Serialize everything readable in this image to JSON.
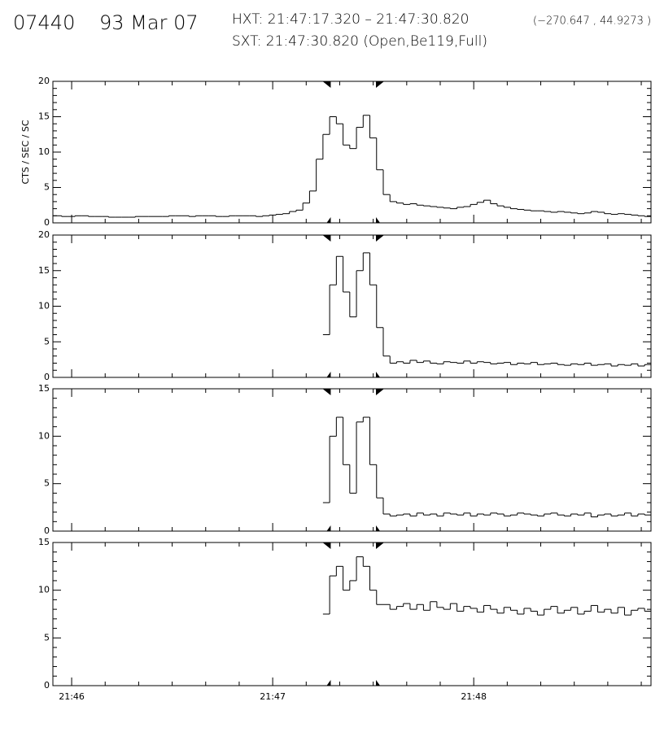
{
  "header": {
    "id": "07440",
    "date": "93 Mar 07",
    "hxt": "HXT: 21:47:17.320 – 21:47:30.820",
    "coords": "(−270.647 , 44.9273 )",
    "sxt": "SXT: 21:47:30.820 (Open,Be119,Full)"
  },
  "hxt_interval": [
    77.32,
    90.82
  ],
  "chart_data": [
    {
      "type": "step",
      "ylabel": "CTS / SEC / SC",
      "color": "#000000",
      "ylim": [
        0,
        20
      ],
      "yticks": [
        0,
        5,
        10,
        15,
        20
      ],
      "xlim": [
        -5.6,
        172.9
      ],
      "x": [
        -6,
        -4,
        -2,
        0,
        2,
        4,
        6,
        8,
        10,
        12,
        14,
        16,
        18,
        20,
        22,
        24,
        26,
        28,
        30,
        32,
        34,
        36,
        38,
        40,
        42,
        44,
        46,
        48,
        50,
        52,
        54,
        56,
        58,
        60,
        62,
        64,
        66,
        68,
        70,
        72,
        74,
        76,
        78,
        80,
        82,
        84,
        86,
        88,
        90,
        92,
        94,
        96,
        98,
        100,
        102,
        104,
        106,
        108,
        110,
        112,
        114,
        116,
        118,
        120,
        122,
        124,
        126,
        128,
        130,
        132,
        134,
        136,
        138,
        140,
        142,
        144,
        146,
        148,
        150,
        152,
        154,
        156,
        158,
        160,
        162,
        164,
        166,
        168,
        170,
        172
      ],
      "values": [
        1.0,
        1.0,
        0.9,
        0.9,
        1.0,
        1.0,
        0.9,
        0.9,
        0.9,
        0.8,
        0.8,
        0.8,
        0.8,
        0.9,
        0.9,
        0.9,
        0.9,
        0.9,
        1.0,
        1.0,
        1.0,
        0.9,
        1.0,
        1.0,
        1.0,
        0.9,
        0.9,
        1.0,
        1.0,
        1.0,
        1.0,
        0.9,
        1.0,
        1.1,
        1.2,
        1.3,
        1.6,
        1.8,
        2.8,
        4.5,
        9.0,
        12.5,
        15.0,
        14.0,
        11.0,
        10.5,
        13.5,
        15.2,
        12.0,
        7.5,
        4.0,
        3.0,
        2.8,
        2.6,
        2.7,
        2.5,
        2.4,
        2.3,
        2.2,
        2.1,
        2.0,
        2.2,
        2.3,
        2.6,
        2.9,
        3.2,
        2.7,
        2.4,
        2.2,
        2.0,
        1.9,
        1.8,
        1.7,
        1.7,
        1.6,
        1.5,
        1.6,
        1.5,
        1.4,
        1.3,
        1.4,
        1.6,
        1.5,
        1.3,
        1.2,
        1.3,
        1.2,
        1.1,
        1.0,
        0.9
      ]
    },
    {
      "type": "step",
      "color": "#000000",
      "ylim": [
        0,
        20
      ],
      "yticks": [
        0,
        5,
        10,
        15,
        20
      ],
      "xlim": [
        -5.6,
        172.9
      ],
      "x": [
        -6,
        -4,
        -2,
        0,
        2,
        4,
        6,
        8,
        10,
        12,
        14,
        16,
        18,
        20,
        22,
        24,
        26,
        28,
        30,
        32,
        34,
        36,
        38,
        40,
        42,
        44,
        46,
        48,
        50,
        52,
        54,
        56,
        58,
        60,
        62,
        64,
        66,
        68,
        70,
        72,
        74,
        76,
        78,
        80,
        82,
        84,
        86,
        88,
        90,
        92,
        94,
        96,
        98,
        100,
        102,
        104,
        106,
        108,
        110,
        112,
        114,
        116,
        118,
        120,
        122,
        124,
        126,
        128,
        130,
        132,
        134,
        136,
        138,
        140,
        142,
        144,
        146,
        148,
        150,
        152,
        154,
        156,
        158,
        160,
        162,
        164,
        166,
        168,
        170,
        172
      ],
      "values": [
        null,
        null,
        null,
        null,
        null,
        null,
        null,
        null,
        null,
        null,
        null,
        null,
        null,
        null,
        null,
        null,
        null,
        null,
        null,
        null,
        null,
        null,
        null,
        null,
        null,
        null,
        null,
        null,
        null,
        null,
        null,
        null,
        null,
        null,
        null,
        null,
        null,
        null,
        null,
        null,
        null,
        6.0,
        13.0,
        17.0,
        12.0,
        8.5,
        15.0,
        17.5,
        13.0,
        7.0,
        3.0,
        2.0,
        2.2,
        2.0,
        2.4,
        2.1,
        2.3,
        2.0,
        1.9,
        2.2,
        2.1,
        2.0,
        2.3,
        2.0,
        2.2,
        2.1,
        1.9,
        2.0,
        2.1,
        1.8,
        2.0,
        1.9,
        2.1,
        1.8,
        1.9,
        2.0,
        1.8,
        1.7,
        1.9,
        1.8,
        2.0,
        1.7,
        1.8,
        1.9,
        1.6,
        1.8,
        1.7,
        1.9,
        1.6,
        1.8
      ]
    },
    {
      "type": "step",
      "color": "#000000",
      "ylim": [
        0,
        15
      ],
      "yticks": [
        0,
        5,
        10,
        15
      ],
      "xlim": [
        -5.6,
        172.9
      ],
      "x": [
        -6,
        -4,
        -2,
        0,
        2,
        4,
        6,
        8,
        10,
        12,
        14,
        16,
        18,
        20,
        22,
        24,
        26,
        28,
        30,
        32,
        34,
        36,
        38,
        40,
        42,
        44,
        46,
        48,
        50,
        52,
        54,
        56,
        58,
        60,
        62,
        64,
        66,
        68,
        70,
        72,
        74,
        76,
        78,
        80,
        82,
        84,
        86,
        88,
        90,
        92,
        94,
        96,
        98,
        100,
        102,
        104,
        106,
        108,
        110,
        112,
        114,
        116,
        118,
        120,
        122,
        124,
        126,
        128,
        130,
        132,
        134,
        136,
        138,
        140,
        142,
        144,
        146,
        148,
        150,
        152,
        154,
        156,
        158,
        160,
        162,
        164,
        166,
        168,
        170,
        172
      ],
      "values": [
        null,
        null,
        null,
        null,
        null,
        null,
        null,
        null,
        null,
        null,
        null,
        null,
        null,
        null,
        null,
        null,
        null,
        null,
        null,
        null,
        null,
        null,
        null,
        null,
        null,
        null,
        null,
        null,
        null,
        null,
        null,
        null,
        null,
        null,
        null,
        null,
        null,
        null,
        null,
        null,
        null,
        3.0,
        10.0,
        12.0,
        7.0,
        4.0,
        11.5,
        12.0,
        7.0,
        3.5,
        1.8,
        1.6,
        1.7,
        1.8,
        1.6,
        1.9,
        1.7,
        1.8,
        1.6,
        1.9,
        1.8,
        1.7,
        1.9,
        1.6,
        1.8,
        1.7,
        1.9,
        1.8,
        1.6,
        1.7,
        1.9,
        1.8,
        1.7,
        1.6,
        1.8,
        1.9,
        1.7,
        1.6,
        1.8,
        1.7,
        1.9,
        1.5,
        1.7,
        1.8,
        1.6,
        1.7,
        1.9,
        1.6,
        1.8,
        1.7
      ]
    },
    {
      "type": "step",
      "color": "#000000",
      "ylim": [
        0,
        15
      ],
      "yticks": [
        0,
        5,
        10,
        15
      ],
      "xlim": [
        -5.6,
        172.9
      ],
      "xticks": [
        {
          "value": 0,
          "label": "21:46"
        },
        {
          "value": 60,
          "label": "21:47"
        },
        {
          "value": 120,
          "label": "21:48"
        }
      ],
      "x": [
        -6,
        -4,
        -2,
        0,
        2,
        4,
        6,
        8,
        10,
        12,
        14,
        16,
        18,
        20,
        22,
        24,
        26,
        28,
        30,
        32,
        34,
        36,
        38,
        40,
        42,
        44,
        46,
        48,
        50,
        52,
        54,
        56,
        58,
        60,
        62,
        64,
        66,
        68,
        70,
        72,
        74,
        76,
        78,
        80,
        82,
        84,
        86,
        88,
        90,
        92,
        94,
        96,
        98,
        100,
        102,
        104,
        106,
        108,
        110,
        112,
        114,
        116,
        118,
        120,
        122,
        124,
        126,
        128,
        130,
        132,
        134,
        136,
        138,
        140,
        142,
        144,
        146,
        148,
        150,
        152,
        154,
        156,
        158,
        160,
        162,
        164,
        166,
        168,
        170,
        172
      ],
      "values": [
        null,
        null,
        null,
        null,
        null,
        null,
        null,
        null,
        null,
        null,
        null,
        null,
        null,
        null,
        null,
        null,
        null,
        null,
        null,
        null,
        null,
        null,
        null,
        null,
        null,
        null,
        null,
        null,
        null,
        null,
        null,
        null,
        null,
        null,
        null,
        null,
        null,
        null,
        null,
        null,
        null,
        7.5,
        11.5,
        12.5,
        10.0,
        11.0,
        13.5,
        12.5,
        10.0,
        8.5,
        8.5,
        8.0,
        8.3,
        8.6,
        8.0,
        8.5,
        7.9,
        8.8,
        8.2,
        8.0,
        8.6,
        7.8,
        8.3,
        8.1,
        7.7,
        8.4,
        8.0,
        7.6,
        8.2,
        7.9,
        7.5,
        8.1,
        7.8,
        7.4,
        8.0,
        8.3,
        7.6,
        7.9,
        8.2,
        7.5,
        7.8,
        8.4,
        7.7,
        8.0,
        7.6,
        8.2,
        7.4,
        7.9,
        8.1,
        7.8
      ]
    }
  ]
}
